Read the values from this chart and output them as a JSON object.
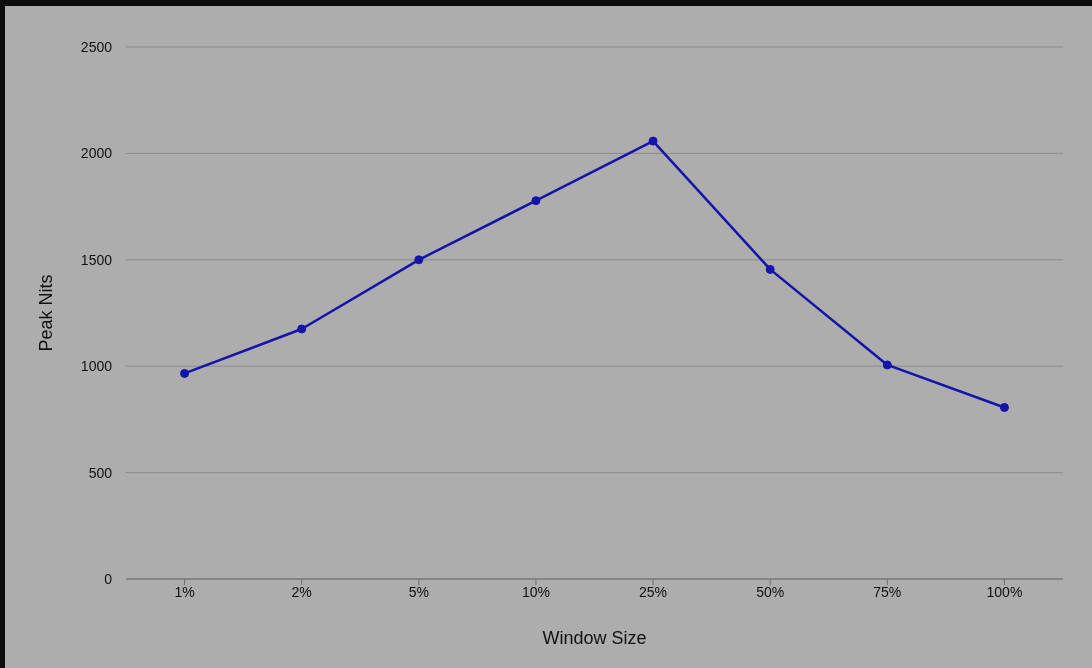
{
  "chart_data": {
    "type": "line",
    "xlabel": "Window Size",
    "ylabel": "Peak Nits",
    "categories": [
      "1%",
      "2%",
      "5%",
      "10%",
      "25%",
      "50%",
      "75%",
      "100%"
    ],
    "series": [
      {
        "color": "#1414aa",
        "values": [
          966,
          1175,
          1500,
          1778,
          2058,
          1455,
          1006,
          806
        ]
      }
    ],
    "ylim": [
      0,
      2500
    ],
    "yticks": [
      0,
      500,
      1000,
      1500,
      2000,
      2500
    ],
    "grid": "y",
    "marker": "circle",
    "line_style": "solid"
  }
}
